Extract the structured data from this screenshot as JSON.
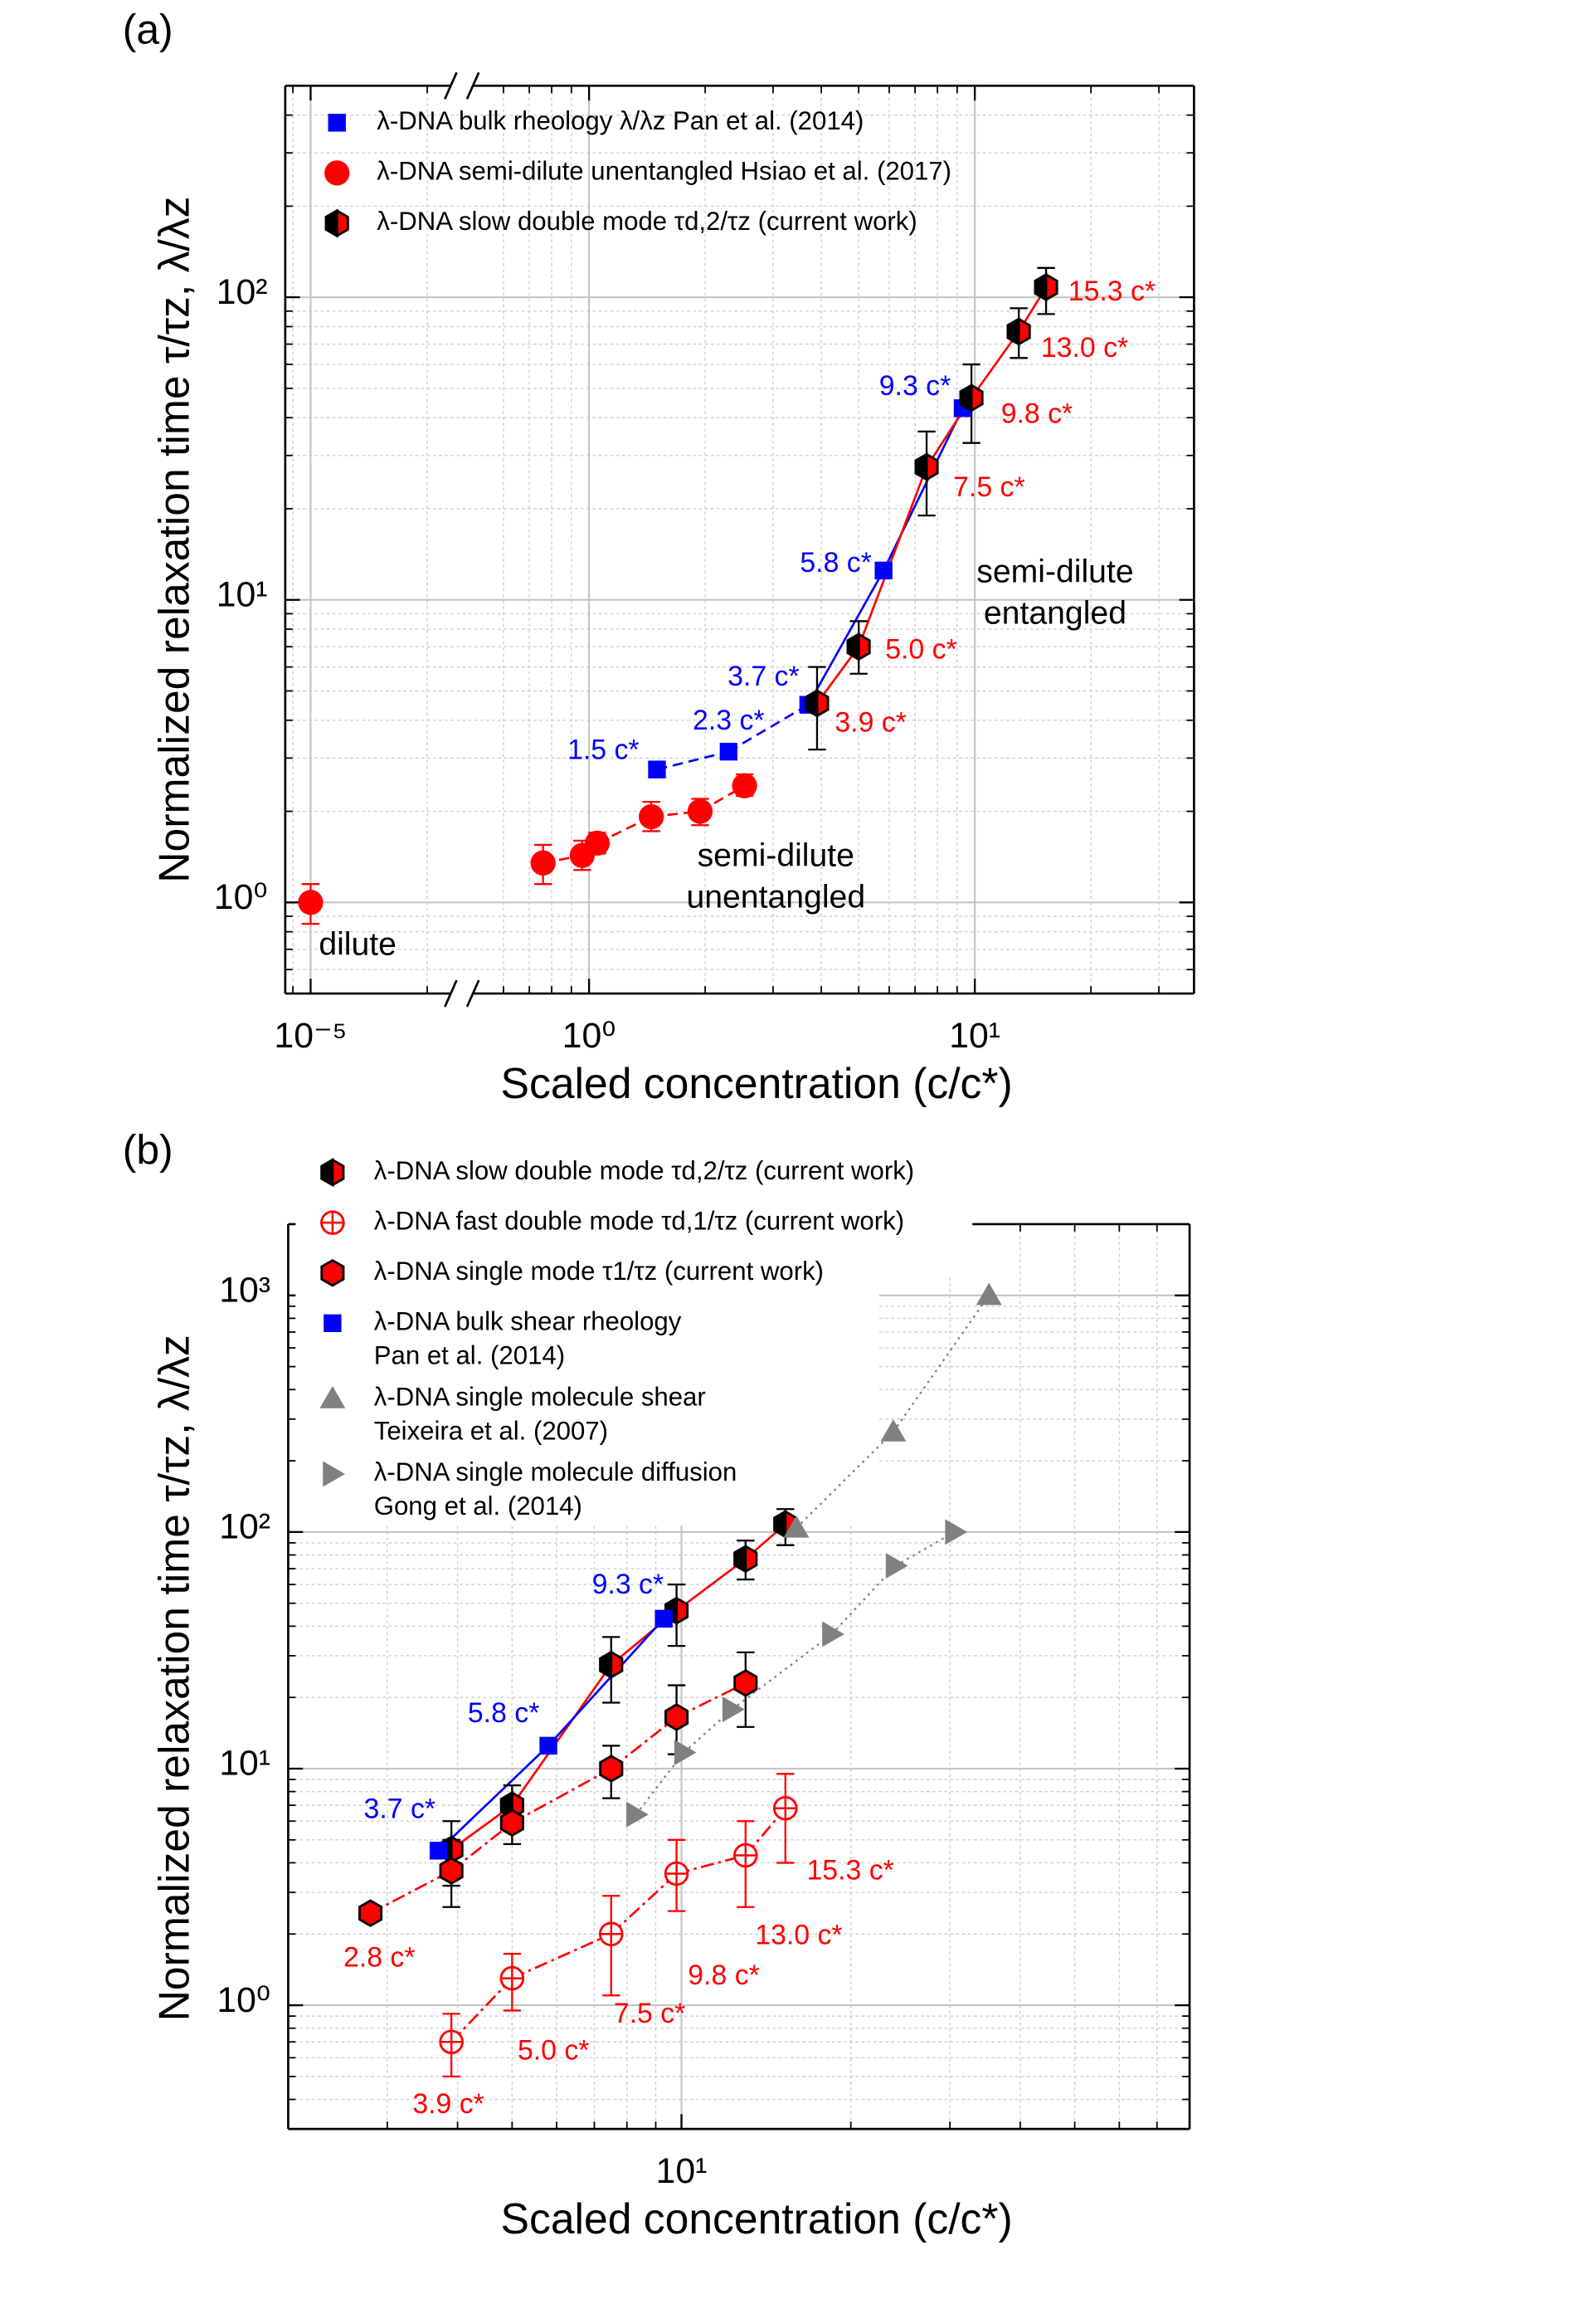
{
  "chart_data": [
    {
      "type": "scatter",
      "panel_label": "(a)",
      "x_label": "Scaled concentration (c/c*)",
      "y_label": "Normalized relaxation time τ/τz, λ/λz",
      "x_scale": "log",
      "y_scale": "log",
      "xlim": [
        8.6e-06,
        37
      ],
      "x_break": [
        2.3e-05,
        0.5
      ],
      "ylim": [
        0.5,
        500
      ],
      "xticks": [
        {
          "value": 1e-05,
          "label": "10⁻⁵"
        },
        {
          "value": 1,
          "label": "10⁰"
        },
        {
          "value": 10,
          "label": "10¹"
        }
      ],
      "yticks": [
        {
          "value": 1,
          "label": "10⁰"
        },
        {
          "value": 10,
          "label": "10¹"
        },
        {
          "value": 100,
          "label": "10²"
        }
      ],
      "grid": true,
      "minor_grid": true,
      "legend": "upper left",
      "series": [
        {
          "name": [
            "λ-DNA bulk rheology  λ/λz Pan et al. (2014)"
          ],
          "color": "#0000ff",
          "marker": "square",
          "x": [
            1.5,
            2.3,
            3.7,
            5.8,
            9.3
          ],
          "values": [
            2.75,
            3.15,
            4.5,
            12.5,
            43
          ],
          "line_styles": [
            "dashed",
            "dashed",
            "solid",
            "solid",
            null
          ],
          "point_labels": [
            "1.5 c*",
            "2.3 c*",
            "3.7 c*",
            "5.8 c*",
            "9.3 c*"
          ]
        },
        {
          "name": [
            "λ-DNA semi-dilute unentangled  Hsiao et al. (2017)"
          ],
          "color": "#ff0000",
          "marker": "circle",
          "x": [
            1e-05,
            0.76,
            0.96,
            1.05,
            1.45,
            1.94,
            2.53
          ],
          "values": [
            1.0,
            1.35,
            1.43,
            1.57,
            1.92,
            2.0,
            2.43
          ],
          "err_low": [
            0.85,
            1.15,
            1.28,
            1.45,
            1.72,
            1.8,
            2.25
          ],
          "err_high": [
            1.15,
            1.55,
            1.6,
            1.7,
            2.15,
            2.2,
            2.65
          ],
          "line_styles": [
            null,
            "dashed",
            "dashed",
            "dashed",
            "dashed",
            "dashed",
            null
          ]
        },
        {
          "name": [
            "λ-DNA slow double mode  τd,2/τz (current work)"
          ],
          "color": "#ff0000",
          "marker": "hexagon-half",
          "error_color": "#000000",
          "x": [
            3.9,
            5.0,
            7.5,
            9.8,
            13.0,
            15.3
          ],
          "values": [
            4.55,
            7.0,
            27.5,
            46.5,
            77,
            108
          ],
          "err_low": [
            3.2,
            5.7,
            19,
            33,
            63,
            88
          ],
          "err_high": [
            6.0,
            8.5,
            36,
            60,
            92,
            125
          ],
          "line": "solid",
          "point_labels": [
            "3.9 c*",
            "5.0 c*",
            "7.5 c*",
            "9.8 c*",
            "13.0 c*",
            "15.3 c*"
          ]
        }
      ],
      "annotations": [
        [
          "dilute"
        ],
        [
          "semi-dilute",
          "unentangled"
        ],
        [
          "semi-dilute",
          "entangled"
        ]
      ]
    },
    {
      "type": "scatter",
      "panel_label": "(b)",
      "x_label": "Scaled concentration (c/c*)",
      "y_label": "Normalized relaxation time τ/τz, λ/λz",
      "x_scale": "log",
      "y_scale": "log",
      "xlim": [
        2,
        80
      ],
      "ylim": [
        0.3,
        2000
      ],
      "xticks": [
        {
          "value": 10,
          "label": "10¹"
        }
      ],
      "yticks": [
        {
          "value": 1,
          "label": "10⁰"
        },
        {
          "value": 10,
          "label": "10¹"
        },
        {
          "value": 100,
          "label": "10²"
        },
        {
          "value": 1000,
          "label": "10³"
        }
      ],
      "grid": true,
      "minor_grid": true,
      "legend": "upper left",
      "series": [
        {
          "name": [
            "λ-DNA slow double mode  τd,2/τz (current work)"
          ],
          "color": "#ff0000",
          "marker": "hexagon-half",
          "error_color": "#000000",
          "x": [
            3.9,
            5.0,
            7.5,
            9.8,
            13.0,
            15.3
          ],
          "values": [
            4.55,
            7.0,
            27.5,
            46.5,
            77,
            108
          ],
          "err_low": [
            3.2,
            5.7,
            19,
            33,
            63,
            88
          ],
          "err_high": [
            6.0,
            8.5,
            36,
            60,
            92,
            125
          ],
          "line": "solid"
        },
        {
          "name": [
            "λ-DNA fast double mode  τd,1/τz (current work)"
          ],
          "color": "#ff0000",
          "marker": "circle-cross",
          "x": [
            3.9,
            5.0,
            7.5,
            9.8,
            13.0,
            15.3
          ],
          "values": [
            0.7,
            1.3,
            2.0,
            3.6,
            4.3,
            6.8
          ],
          "err_low": [
            0.5,
            0.95,
            1.1,
            2.5,
            2.6,
            4.0
          ],
          "err_high": [
            0.92,
            1.65,
            2.9,
            5.0,
            6.0,
            9.5
          ],
          "line": "dashdot",
          "point_labels": [
            "3.9 c*",
            "5.0 c*",
            "7.5 c*",
            "9.8 c*",
            "13.0 c*",
            "15.3 c*"
          ]
        },
        {
          "name": [
            "λ-DNA single mode  τ1/τz (current work)"
          ],
          "color": "#ff0000",
          "marker": "hexagon",
          "error_color": "#000000",
          "x": [
            2.8,
            3.9,
            5.0,
            7.5,
            9.8,
            13.0
          ],
          "values": [
            2.45,
            3.7,
            5.9,
            10,
            16.5,
            23
          ],
          "err_low": [
            2.3,
            2.6,
            4.8,
            7.5,
            11.5,
            15
          ],
          "err_high": [
            2.6,
            5.0,
            7.0,
            12.5,
            22.5,
            31
          ],
          "line": "dashdot",
          "point_labels": [
            "2.8 c*",
            null,
            null,
            null,
            null,
            null
          ]
        },
        {
          "name": [
            "λ-DNA bulk shear rheology",
            "Pan et al. (2014)"
          ],
          "color": "#0000ff",
          "marker": "square",
          "x": [
            3.7,
            5.8,
            9.3
          ],
          "values": [
            4.5,
            12.5,
            43
          ],
          "line": "solid",
          "point_labels": [
            "3.7 c*",
            "5.8 c*",
            "9.3 c*"
          ]
        },
        {
          "name": [
            "λ-DNA single molecule shear",
            "Teixeira et al. (2007)"
          ],
          "color": "#808080",
          "marker": "triangle-up",
          "x": [
            16,
            23.8,
            35.2
          ],
          "values": [
            104,
            265,
            1000
          ],
          "line": "dotted"
        },
        {
          "name": [
            "λ-DNA single molecule diffusion",
            "Gong et al. (2014)"
          ],
          "color": "#808080",
          "marker": "triangle-right",
          "x": [
            8.3,
            10.1,
            12.3,
            18.5,
            24,
            30.6
          ],
          "values": [
            6.4,
            11.7,
            17.8,
            37,
            72,
            100
          ],
          "line": "dotted"
        }
      ]
    }
  ]
}
